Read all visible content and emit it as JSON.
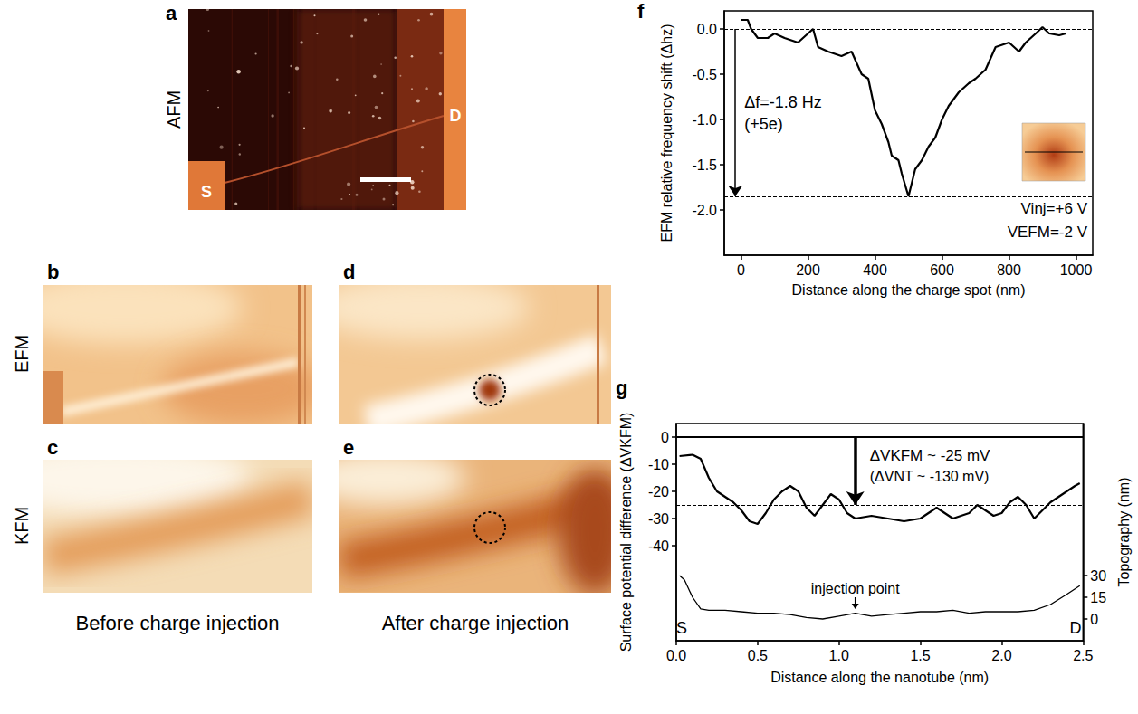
{
  "panels": {
    "a": {
      "label": "a",
      "row_label": "AFM",
      "electrodes": [
        "S",
        "D"
      ]
    },
    "b": {
      "label": "b",
      "row_label": "EFM"
    },
    "c": {
      "label": "c",
      "row_label": "KFM"
    },
    "d": {
      "label": "d"
    },
    "e": {
      "label": "e"
    },
    "captions": [
      "Before charge injection",
      "After charge injection"
    ]
  },
  "chart_data": [
    {
      "panel": "f",
      "type": "line",
      "xlabel": "Distance along the charge spot (nm)",
      "ylabel": "EFM relative frequency shift (Δhz)",
      "x": [
        0,
        20,
        30,
        50,
        80,
        100,
        130,
        170,
        200,
        215,
        230,
        260,
        300,
        330,
        360,
        380,
        400,
        420,
        440,
        450,
        470,
        480,
        500,
        520,
        540,
        560,
        580,
        600,
        620,
        650,
        680,
        700,
        730,
        760,
        800,
        830,
        850,
        880,
        900,
        920,
        950,
        970
      ],
      "values": [
        0.1,
        0.1,
        0.0,
        -0.1,
        -0.1,
        -0.05,
        -0.1,
        -0.15,
        -0.05,
        0.0,
        -0.2,
        -0.25,
        -0.3,
        -0.25,
        -0.5,
        -0.55,
        -0.9,
        -1.05,
        -1.25,
        -1.4,
        -1.45,
        -1.6,
        -1.85,
        -1.55,
        -1.45,
        -1.3,
        -1.2,
        -1.0,
        -0.85,
        -0.7,
        -0.6,
        -0.55,
        -0.45,
        -0.2,
        -0.15,
        -0.25,
        -0.15,
        -0.05,
        0.02,
        -0.05,
        -0.07,
        -0.05
      ],
      "color": "#000000",
      "xlim": [
        -50,
        1050
      ],
      "xticks": [
        0,
        200,
        400,
        600,
        800,
        1000
      ],
      "ylim": [
        -2.5,
        0.2
      ],
      "yticks": [
        {
          "value": 0,
          "label": "0.0"
        },
        {
          "value": -0.5,
          "label": "-0.5"
        },
        {
          "value": -1,
          "label": "-1.0"
        },
        {
          "value": -1.5,
          "label": "-1.5"
        },
        {
          "value": -2,
          "label": "-2.0"
        }
      ],
      "hlines": [
        {
          "value": 0,
          "line_style": "dashed"
        },
        {
          "value": -1.85,
          "line_style": "dashed"
        }
      ],
      "annotations": [
        "Δf=-1.8 Hz",
        "(+5e)"
      ],
      "inset_labels": [
        "Vinj=+6 V",
        "VEFM=-2 V"
      ]
    },
    {
      "panel": "g",
      "type": "line",
      "xlabel": "Distance along the nanotube (nm)",
      "ylabel": "Surface potential difference (ΔVKFM)",
      "y2label": "Topography (nm)",
      "series": [
        {
          "color": "#000000",
          "x": [
            0.02,
            0.1,
            0.15,
            0.2,
            0.25,
            0.3,
            0.35,
            0.4,
            0.45,
            0.5,
            0.55,
            0.6,
            0.65,
            0.7,
            0.75,
            0.8,
            0.85,
            0.9,
            0.95,
            1.0,
            1.05,
            1.1,
            1.2,
            1.3,
            1.4,
            1.5,
            1.55,
            1.6,
            1.65,
            1.7,
            1.8,
            1.85,
            1.9,
            1.95,
            2.0,
            2.05,
            2.1,
            2.15,
            2.2,
            2.25,
            2.3,
            2.35,
            2.4,
            2.45,
            2.48
          ],
          "values": [
            -7,
            -6.5,
            -8,
            -15,
            -20,
            -22,
            -24,
            -27,
            -31,
            -32,
            -28,
            -23,
            -20,
            -18,
            -20,
            -26,
            -29,
            -25,
            -21,
            -23,
            -28,
            -30,
            -29,
            -30,
            -31,
            -30,
            -28,
            -26,
            -28,
            -30,
            -28,
            -25,
            -27,
            -29,
            -28,
            -24,
            -22,
            -25,
            -30,
            -27,
            -24,
            -22,
            -20,
            -18,
            -17
          ]
        },
        {
          "color": "#000000",
          "axis": "y2",
          "x": [
            0.02,
            0.05,
            0.1,
            0.15,
            0.2,
            0.3,
            0.4,
            0.5,
            0.6,
            0.7,
            0.8,
            0.9,
            1.0,
            1.1,
            1.2,
            1.3,
            1.4,
            1.5,
            1.6,
            1.7,
            1.8,
            1.9,
            2.0,
            2.1,
            2.2,
            2.3,
            2.4,
            2.48
          ],
          "values": [
            30,
            27,
            15,
            7,
            6,
            6,
            5,
            4,
            4,
            3,
            1,
            0,
            2,
            4,
            2,
            3,
            4,
            5,
            5,
            6,
            4,
            5,
            5,
            5,
            6,
            10,
            17,
            23
          ]
        }
      ],
      "xlim": [
        0,
        2.5
      ],
      "xticks": [
        {
          "value": 0,
          "label": "0.0"
        },
        {
          "value": 0.5,
          "label": "0.5"
        },
        {
          "value": 1,
          "label": "1.0"
        },
        {
          "value": 1.5,
          "label": "1.5"
        },
        {
          "value": 2,
          "label": "2.0"
        },
        {
          "value": 2.5,
          "label": "2.5"
        }
      ],
      "ylim": [
        -75,
        5
      ],
      "yticks": [
        0,
        -10,
        -20,
        -30,
        -40
      ],
      "y2lim": [
        -15,
        135
      ],
      "y2ticks": [
        0,
        15,
        30
      ],
      "hlines": [
        {
          "value": 0,
          "line_style": "solid"
        },
        {
          "value": -25,
          "line_style": "dashed"
        }
      ],
      "annotations": [
        "ΔVKFM ~ -25 mV",
        "(ΔVNT ~ -130 mV)"
      ],
      "injection_point": {
        "label": "injection point",
        "x": 1.1
      },
      "end_labels": [
        "S",
        "D"
      ]
    }
  ]
}
